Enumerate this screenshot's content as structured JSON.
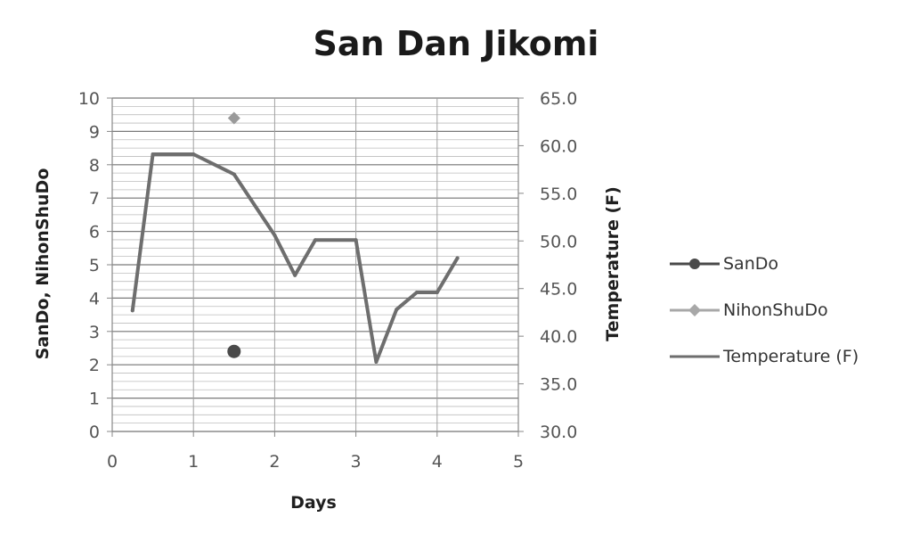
{
  "chart_data": {
    "type": "line",
    "title": "San Dan Jikomi",
    "xlabel": "Days",
    "ylabel_left": "SanDo, NihonShuDo",
    "ylabel_right": "Temperature (F)",
    "xlim": [
      0,
      5
    ],
    "ylim_left": [
      0,
      10
    ],
    "ylim_right": [
      30.0,
      65.0
    ],
    "x_ticks": [
      "0",
      "1",
      "2",
      "3",
      "4",
      "5"
    ],
    "y_left_ticks": [
      "0",
      "1",
      "2",
      "3",
      "4",
      "5",
      "6",
      "7",
      "8",
      "9",
      "10"
    ],
    "y_right_ticks": [
      "30.0",
      "35.0",
      "40.0",
      "45.0",
      "50.0",
      "55.0",
      "60.0",
      "65.0"
    ],
    "legend_position": "right",
    "grid": true,
    "series": [
      {
        "name": "SanDo",
        "axis": "left",
        "marker": "circle",
        "color": "#4a4a4a",
        "x": [
          1.5
        ],
        "y": [
          2.4
        ]
      },
      {
        "name": "NihonShuDo",
        "axis": "left",
        "marker": "diamond",
        "color": "#9a9a9a",
        "x": [
          1.5
        ],
        "y": [
          9.4
        ]
      },
      {
        "name": "Temperature (F)",
        "axis": "right",
        "marker": "none",
        "color": "#6e6e6e",
        "x": [
          0.25,
          0.5,
          1.0,
          1.5,
          2.0,
          2.25,
          2.5,
          3.0,
          3.25,
          3.5,
          3.75,
          4.0,
          4.25
        ],
        "y": [
          42.7,
          59.1,
          59.1,
          57.0,
          50.6,
          46.4,
          50.1,
          50.1,
          37.3,
          42.8,
          44.6,
          44.6,
          48.2
        ]
      }
    ]
  }
}
